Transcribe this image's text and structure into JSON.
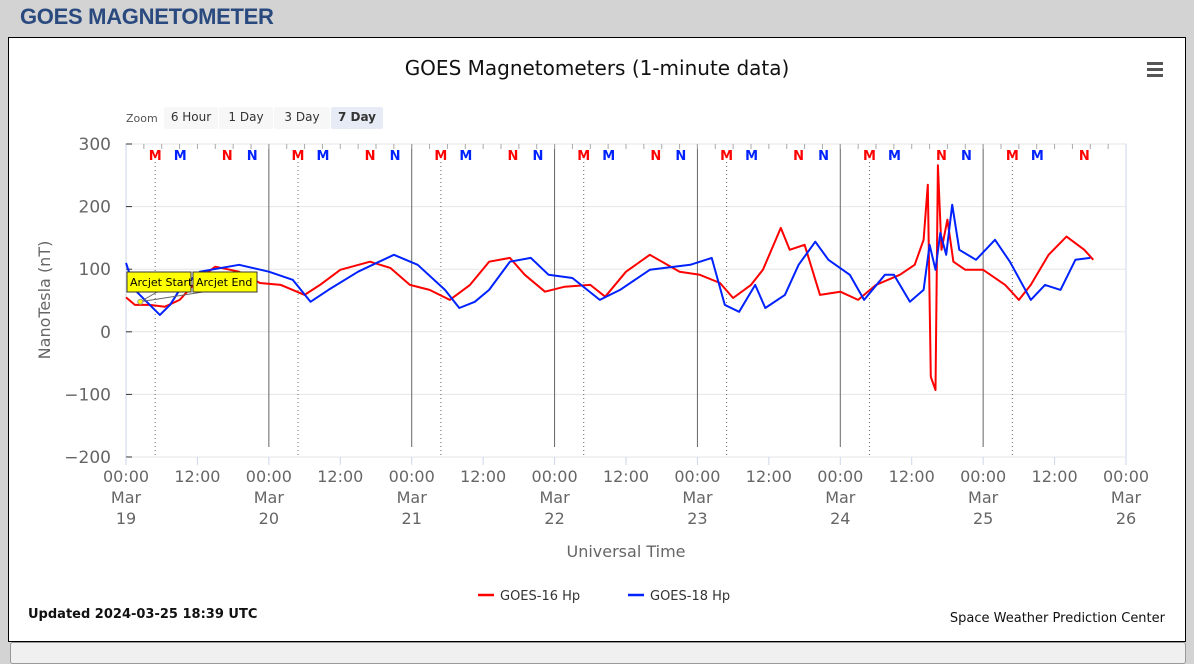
{
  "header": {
    "title": "GOES MAGNETOMETER"
  },
  "menu_icon": "hamburger-menu-icon",
  "zoom": {
    "label": "Zoom",
    "buttons": [
      "6 Hour",
      "1 Day",
      "3 Day",
      "7 Day"
    ],
    "selected": "7 Day"
  },
  "footer": {
    "updated": "Updated 2024-03-25 18:39 UTC",
    "credit": "Space Weather Prediction Center"
  },
  "chart_data": {
    "type": "line",
    "title": "GOES Magnetometers (1-minute data)",
    "xlabel": "Universal Time",
    "ylabel": "NanoTesla (nT)",
    "ylim": [
      -200,
      300
    ],
    "yticks": [
      "300",
      "200",
      "100",
      "0",
      "−100",
      "−200"
    ],
    "ytick_values": [
      300,
      200,
      100,
      0,
      -100,
      -200
    ],
    "x_unit": "hours since 2024-03-19 00:00 UTC",
    "xlim": [
      0,
      168
    ],
    "xticks": [
      {
        "h": 0,
        "t": [
          "00:00",
          "Mar",
          "19"
        ]
      },
      {
        "h": 12,
        "t": [
          "12:00"
        ]
      },
      {
        "h": 24,
        "t": [
          "00:00",
          "Mar",
          "20"
        ]
      },
      {
        "h": 36,
        "t": [
          "12:00"
        ]
      },
      {
        "h": 48,
        "t": [
          "00:00",
          "Mar",
          "21"
        ]
      },
      {
        "h": 60,
        "t": [
          "12:00"
        ]
      },
      {
        "h": 72,
        "t": [
          "00:00",
          "Mar",
          "22"
        ]
      },
      {
        "h": 84,
        "t": [
          "12:00"
        ]
      },
      {
        "h": 96,
        "t": [
          "00:00",
          "Mar",
          "23"
        ]
      },
      {
        "h": 108,
        "t": [
          "12:00"
        ]
      },
      {
        "h": 120,
        "t": [
          "00:00",
          "Mar",
          "24"
        ]
      },
      {
        "h": 132,
        "t": [
          "12:00"
        ]
      },
      {
        "h": 144,
        "t": [
          "00:00",
          "Mar",
          "25"
        ]
      },
      {
        "h": 156,
        "t": [
          "12:00"
        ]
      },
      {
        "h": 168,
        "t": [
          "00:00",
          "Mar",
          "26"
        ]
      }
    ],
    "grid": true,
    "legend_position": "bottom-center",
    "series": [
      {
        "name": "GOES-16 Hp",
        "color": "#ff0000",
        "points": [
          [
            0,
            55
          ],
          [
            1.5,
            43
          ],
          [
            4,
            43
          ],
          [
            6.5,
            40
          ],
          [
            9,
            51
          ],
          [
            12.4,
            86
          ],
          [
            15,
            104
          ],
          [
            19,
            96
          ],
          [
            22.5,
            78
          ],
          [
            26,
            75
          ],
          [
            30,
            59
          ],
          [
            32.6,
            75
          ],
          [
            36,
            99
          ],
          [
            41,
            112
          ],
          [
            44.4,
            102
          ],
          [
            47.7,
            75
          ],
          [
            51,
            67
          ],
          [
            54.4,
            51
          ],
          [
            57.8,
            75
          ],
          [
            61,
            112
          ],
          [
            64.5,
            118
          ],
          [
            67,
            91
          ],
          [
            70.4,
            64
          ],
          [
            73.7,
            72
          ],
          [
            78,
            75
          ],
          [
            80.5,
            56
          ],
          [
            84,
            96
          ],
          [
            88,
            123
          ],
          [
            93,
            96
          ],
          [
            96.4,
            91
          ],
          [
            99.8,
            78
          ],
          [
            102,
            54
          ],
          [
            105,
            75
          ],
          [
            107,
            99
          ],
          [
            110,
            166
          ],
          [
            111.5,
            131
          ],
          [
            114,
            139
          ],
          [
            116.6,
            59
          ],
          [
            120,
            64
          ],
          [
            123,
            51
          ],
          [
            126,
            75
          ],
          [
            130,
            91
          ],
          [
            132.5,
            107
          ],
          [
            134,
            147
          ],
          [
            134.7,
            235
          ],
          [
            135.2,
            -72
          ],
          [
            136,
            -93
          ],
          [
            136.4,
            266
          ],
          [
            137,
            131
          ],
          [
            138,
            179
          ],
          [
            139,
            112
          ],
          [
            141,
            99
          ],
          [
            144,
            99
          ],
          [
            147.7,
            75
          ],
          [
            150,
            51
          ],
          [
            152,
            75
          ],
          [
            155,
            123
          ],
          [
            158,
            152
          ],
          [
            161,
            131
          ],
          [
            162.5,
            115
          ]
        ]
      },
      {
        "name": "GOES-18 Hp",
        "color": "#0022ff",
        "points": [
          [
            0,
            110
          ],
          [
            1.5,
            67
          ],
          [
            4,
            43
          ],
          [
            5.7,
            27
          ],
          [
            7.4,
            43
          ],
          [
            9,
            67
          ],
          [
            12.4,
            96
          ],
          [
            19,
            107
          ],
          [
            24,
            96
          ],
          [
            28,
            83
          ],
          [
            31,
            48
          ],
          [
            34,
            67
          ],
          [
            39,
            96
          ],
          [
            45,
            123
          ],
          [
            49,
            107
          ],
          [
            53.6,
            67
          ],
          [
            56,
            38
          ],
          [
            58.6,
            48
          ],
          [
            61,
            67
          ],
          [
            64.5,
            112
          ],
          [
            68,
            118
          ],
          [
            71,
            91
          ],
          [
            75,
            86
          ],
          [
            79.6,
            51
          ],
          [
            83,
            67
          ],
          [
            88,
            99
          ],
          [
            94.8,
            107
          ],
          [
            98.4,
            118
          ],
          [
            100.6,
            43
          ],
          [
            103,
            32
          ],
          [
            105.7,
            75
          ],
          [
            107.4,
            38
          ],
          [
            110.7,
            59
          ],
          [
            113,
            107
          ],
          [
            115.8,
            144
          ],
          [
            118,
            115
          ],
          [
            121.6,
            91
          ],
          [
            124,
            51
          ],
          [
            127.5,
            91
          ],
          [
            129,
            91
          ],
          [
            131.7,
            48
          ],
          [
            134,
            67
          ],
          [
            135,
            139
          ],
          [
            136,
            99
          ],
          [
            136.8,
            158
          ],
          [
            137.8,
            123
          ],
          [
            138.8,
            203
          ],
          [
            140,
            131
          ],
          [
            142.8,
            115
          ],
          [
            146,
            147
          ],
          [
            148.5,
            112
          ],
          [
            152,
            51
          ],
          [
            154.4,
            75
          ],
          [
            157,
            67
          ],
          [
            159.5,
            115
          ],
          [
            162,
            118
          ]
        ]
      }
    ],
    "markers": [
      {
        "h": 4.9,
        "label": "M",
        "color": "#ff0000"
      },
      {
        "h": 9.1,
        "label": "M",
        "color": "#0022ff"
      },
      {
        "h": 17,
        "label": "N",
        "color": "#ff0000"
      },
      {
        "h": 21.2,
        "label": "N",
        "color": "#0022ff"
      },
      {
        "h": 28.9,
        "label": "M",
        "color": "#ff0000"
      },
      {
        "h": 33.1,
        "label": "M",
        "color": "#0022ff"
      },
      {
        "h": 41,
        "label": "N",
        "color": "#ff0000"
      },
      {
        "h": 45.2,
        "label": "N",
        "color": "#0022ff"
      },
      {
        "h": 52.9,
        "label": "M",
        "color": "#ff0000"
      },
      {
        "h": 57.1,
        "label": "M",
        "color": "#0022ff"
      },
      {
        "h": 65,
        "label": "N",
        "color": "#ff0000"
      },
      {
        "h": 69.2,
        "label": "N",
        "color": "#0022ff"
      },
      {
        "h": 76.9,
        "label": "M",
        "color": "#ff0000"
      },
      {
        "h": 81.1,
        "label": "M",
        "color": "#0022ff"
      },
      {
        "h": 89,
        "label": "N",
        "color": "#ff0000"
      },
      {
        "h": 93.2,
        "label": "N",
        "color": "#0022ff"
      },
      {
        "h": 100.9,
        "label": "M",
        "color": "#ff0000"
      },
      {
        "h": 105.1,
        "label": "M",
        "color": "#0022ff"
      },
      {
        "h": 113,
        "label": "N",
        "color": "#ff0000"
      },
      {
        "h": 117.2,
        "label": "N",
        "color": "#0022ff"
      },
      {
        "h": 124.9,
        "label": "M",
        "color": "#ff0000"
      },
      {
        "h": 129.1,
        "label": "M",
        "color": "#0022ff"
      },
      {
        "h": 137,
        "label": "N",
        "color": "#ff0000"
      },
      {
        "h": 141.2,
        "label": "N",
        "color": "#0022ff"
      },
      {
        "h": 148.9,
        "label": "M",
        "color": "#ff0000"
      },
      {
        "h": 153.1,
        "label": "M",
        "color": "#0022ff"
      },
      {
        "h": 161,
        "label": "N",
        "color": "#ff0000"
      }
    ],
    "annotations": [
      {
        "text": "Arcjet Start",
        "h": 2.4,
        "v": 48
      },
      {
        "text": "Arcjet End",
        "h": 2.4,
        "v": 48
      }
    ]
  }
}
